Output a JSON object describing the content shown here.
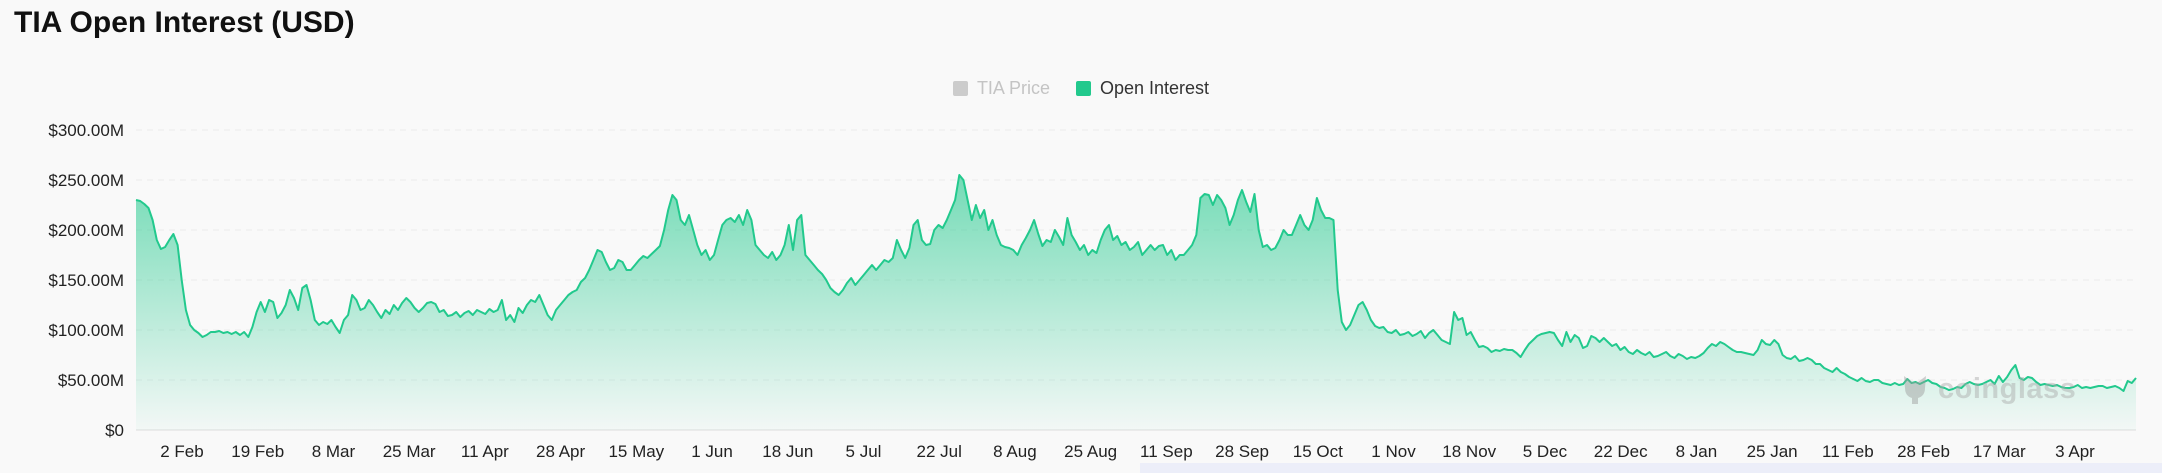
{
  "page": {
    "title": "TIA Open Interest (USD)"
  },
  "legend": {
    "items": [
      {
        "label": "TIA Price",
        "color": "#cccccc",
        "active": false
      },
      {
        "label": "Open Interest",
        "color": "#22c98d",
        "active": true
      }
    ]
  },
  "watermark": {
    "text": "coinglass"
  },
  "colors": {
    "series": "#22c98d",
    "grid": "#ececec",
    "axis_text": "#222222"
  },
  "chart_data": {
    "type": "area",
    "series": [
      {
        "name": "Open Interest",
        "values": [
          230,
          229,
          226,
          222,
          210,
          190,
          181,
          183,
          190,
          196,
          185,
          150,
          120,
          105,
          100,
          97,
          93,
          95,
          98,
          98,
          99,
          97,
          98,
          96,
          98,
          95,
          98,
          93,
          103,
          118,
          128,
          118,
          130,
          128,
          112,
          117,
          125,
          140,
          132,
          120,
          142,
          145,
          130,
          110,
          105,
          108,
          106,
          110,
          103,
          97,
          110,
          115,
          135,
          130,
          120,
          122,
          130,
          125,
          118,
          112,
          120,
          116,
          125,
          120,
          127,
          132,
          128,
          122,
          118,
          122,
          127,
          128,
          126,
          118,
          120,
          114,
          115,
          118,
          113,
          117,
          119,
          115,
          120,
          118,
          116,
          121,
          118,
          120,
          130,
          110,
          115,
          108,
          122,
          117,
          125,
          130,
          128,
          135,
          125,
          115,
          110,
          120,
          125,
          130,
          135,
          138,
          140,
          148,
          152,
          160,
          170,
          180,
          178,
          168,
          160,
          162,
          170,
          168,
          160,
          160,
          165,
          170,
          174,
          172,
          176,
          180,
          184,
          200,
          220,
          235,
          230,
          210,
          205,
          215,
          200,
          185,
          175,
          180,
          170,
          175,
          190,
          205,
          210,
          212,
          208,
          215,
          205,
          220,
          210,
          185,
          180,
          175,
          172,
          178,
          170,
          175,
          185,
          205,
          180,
          210,
          215,
          175,
          170,
          165,
          160,
          156,
          150,
          142,
          138,
          135,
          140,
          147,
          152,
          145,
          150,
          155,
          160,
          165,
          160,
          165,
          170,
          168,
          172,
          190,
          180,
          172,
          182,
          205,
          210,
          190,
          185,
          186,
          200,
          205,
          202,
          210,
          220,
          230,
          255,
          250,
          230,
          210,
          225,
          212,
          220,
          200,
          210,
          195,
          185,
          183,
          182,
          180,
          175,
          185,
          192,
          200,
          210,
          196,
          184,
          190,
          188,
          200,
          193,
          185,
          212,
          195,
          188,
          180,
          185,
          175,
          180,
          177,
          190,
          200,
          205,
          190,
          194,
          185,
          188,
          180,
          183,
          188,
          175,
          180,
          185,
          180,
          184,
          185,
          175,
          180,
          170,
          175,
          175,
          180,
          185,
          195,
          232,
          236,
          235,
          225,
          235,
          230,
          222,
          205,
          215,
          230,
          240,
          228,
          218,
          236,
          200,
          183,
          185,
          180,
          182,
          190,
          200,
          195,
          195,
          205,
          215,
          205,
          200,
          210,
          232,
          220,
          212,
          212,
          210,
          140,
          108,
          100,
          105,
          115,
          125,
          128,
          120,
          110,
          104,
          102,
          103,
          98,
          97,
          100,
          95,
          96,
          98,
          94,
          96,
          99,
          92,
          97,
          100,
          95,
          90,
          88,
          86,
          118,
          110,
          112,
          95,
          98,
          90,
          83,
          84,
          82,
          78,
          80,
          79,
          81,
          80,
          80,
          77,
          73,
          80,
          86,
          90,
          94,
          96,
          97,
          98,
          97,
          90,
          84,
          98,
          88,
          95,
          92,
          82,
          84,
          94,
          92,
          88,
          92,
          88,
          84,
          86,
          80,
          83,
          78,
          76,
          80,
          77,
          75,
          78,
          73,
          74,
          76,
          78,
          74,
          72,
          76,
          74,
          71,
          73,
          72,
          74,
          77,
          82,
          86,
          84,
          88,
          86,
          83,
          80,
          78,
          78,
          77,
          76,
          75,
          80,
          90,
          86,
          85,
          90,
          86,
          75,
          72,
          71,
          74,
          69,
          70,
          72,
          70,
          66,
          66,
          62,
          60,
          58,
          62,
          58,
          56,
          53,
          51,
          49,
          52,
          49,
          48,
          50,
          50,
          47,
          46,
          45,
          47,
          45,
          46,
          51,
          47,
          48,
          46,
          48,
          50,
          47,
          46,
          43,
          42,
          40,
          41,
          43,
          42,
          46,
          48,
          46,
          45,
          46,
          48,
          50,
          46,
          54,
          48,
          53,
          60,
          65,
          52,
          50,
          53,
          52,
          48,
          45,
          46,
          45,
          44,
          45,
          43,
          42,
          42,
          43,
          45,
          42,
          43,
          42,
          43,
          44,
          44,
          42,
          43,
          44,
          42,
          39,
          49,
          47,
          52
        ]
      }
    ],
    "x_ticks": [
      "2 Feb",
      "19 Feb",
      "8 Mar",
      "25 Mar",
      "11 Apr",
      "28 Apr",
      "15 May",
      "1 Jun",
      "18 Jun",
      "5 Jul",
      "22 Jul",
      "8 Aug",
      "25 Aug",
      "11 Sep",
      "28 Sep",
      "15 Oct",
      "1 Nov",
      "18 Nov",
      "5 Dec",
      "22 Dec",
      "8 Jan",
      "25 Jan",
      "11 Feb",
      "28 Feb",
      "17 Mar",
      "3 Apr"
    ],
    "y_ticks": [
      "$0",
      "$50.00M",
      "$100.00M",
      "$150.00M",
      "$200.00M",
      "$250.00M",
      "$300.00M"
    ],
    "ylim": [
      0,
      300
    ],
    "y_unit": "USD millions",
    "grid": true,
    "legend_position": "top-center"
  }
}
